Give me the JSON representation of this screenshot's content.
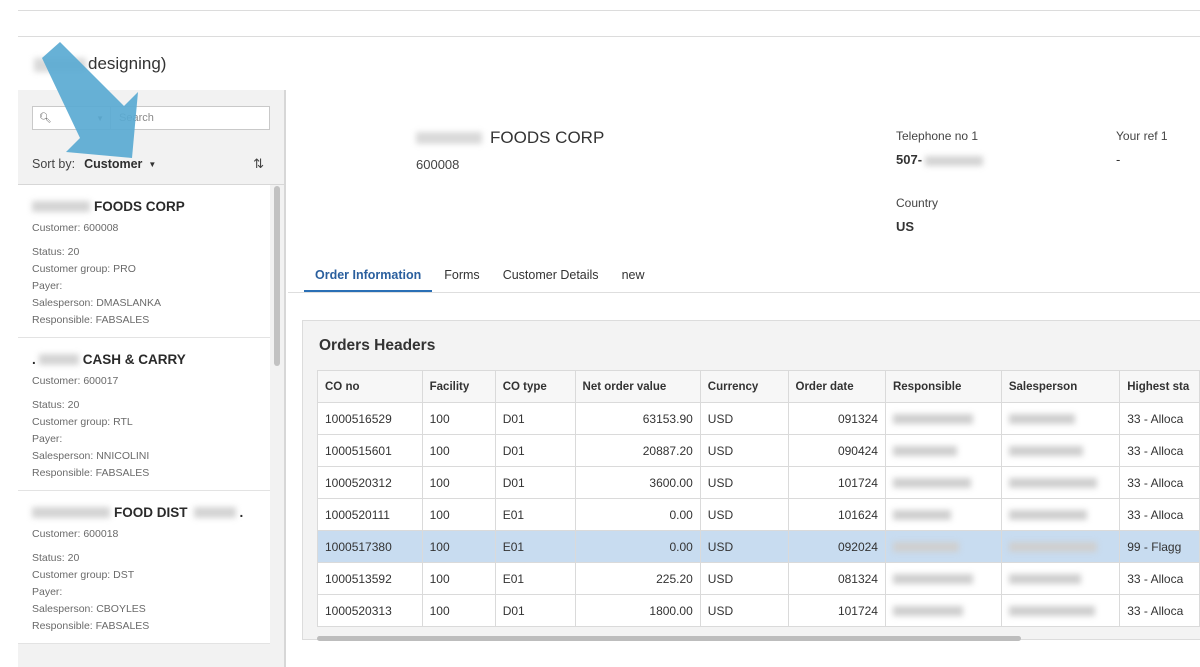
{
  "page": {
    "title_suffix": "designing)"
  },
  "sidebar": {
    "search_placeholder": "Search",
    "sort_label": "Sort by:",
    "sort_value": "Customer",
    "cards": [
      {
        "name": "FOODS CORP",
        "customer": "Customer: 600008",
        "status": "Status: 20",
        "group": "Customer group: PRO",
        "payer": "Payer:",
        "salesperson": "Salesperson: DMASLANKA",
        "responsible": "Responsible: FABSALES"
      },
      {
        "name": "CASH & CARRY",
        "customer": "Customer: 600017",
        "status": "Status: 20",
        "group": "Customer group: RTL",
        "payer": "Payer:",
        "salesperson": "Salesperson: NNICOLINI",
        "responsible": "Responsible: FABSALES"
      },
      {
        "name": "FOOD DIST",
        "customer": "Customer: 600018",
        "status": "Status: 20",
        "group": "Customer group: DST",
        "payer": "Payer:",
        "salesperson": "Salesperson: CBOYLES",
        "responsible": "Responsible: FABSALES"
      }
    ]
  },
  "detail": {
    "customer_name": "FOODS CORP",
    "customer_no": "600008",
    "telephone_label": "Telephone no 1",
    "telephone_value": "507-",
    "your_ref_label": "Your ref 1",
    "your_ref_value": "-",
    "country_label": "Country",
    "country_value": "US",
    "tabs": [
      {
        "label": "Order Information"
      },
      {
        "label": "Forms"
      },
      {
        "label": "Customer Details"
      },
      {
        "label": "new"
      }
    ]
  },
  "orders": {
    "title": "Orders Headers",
    "columns": [
      "CO no",
      "Facility",
      "CO type",
      "Net order value",
      "Currency",
      "Order date",
      "Responsible",
      "Salesperson",
      "Highest sta"
    ],
    "rows": [
      {
        "co_no": "1000516529",
        "facility": "100",
        "co_type": "D01",
        "value": "63153.90",
        "currency": "USD",
        "date": "091324",
        "highest": "33 - Alloca"
      },
      {
        "co_no": "1000515601",
        "facility": "100",
        "co_type": "D01",
        "value": "20887.20",
        "currency": "USD",
        "date": "090424",
        "highest": "33 - Alloca"
      },
      {
        "co_no": "1000520312",
        "facility": "100",
        "co_type": "D01",
        "value": "3600.00",
        "currency": "USD",
        "date": "101724",
        "highest": "33 - Alloca"
      },
      {
        "co_no": "1000520111",
        "facility": "100",
        "co_type": "E01",
        "value": "0.00",
        "currency": "USD",
        "date": "101624",
        "highest": "33 - Alloca"
      },
      {
        "co_no": "1000517380",
        "facility": "100",
        "co_type": "E01",
        "value": "0.00",
        "currency": "USD",
        "date": "092024",
        "highest": "99 - Flagg"
      },
      {
        "co_no": "1000513592",
        "facility": "100",
        "co_type": "E01",
        "value": "225.20",
        "currency": "USD",
        "date": "081324",
        "highest": "33 - Alloca"
      },
      {
        "co_no": "1000520313",
        "facility": "100",
        "co_type": "D01",
        "value": "1800.00",
        "currency": "USD",
        "date": "101724",
        "highest": "33 - Alloca"
      }
    ],
    "selected_index": 4
  },
  "colors": {
    "accent": "#2a6fb5",
    "selected_row": "#c8dcf0",
    "arrow": "#5aaad2"
  },
  "icons": {
    "search": "search-icon",
    "sort_direction": "sort-direction-icon",
    "chevron": "chevron-down-icon",
    "annotation": "annotation-arrow-icon"
  }
}
